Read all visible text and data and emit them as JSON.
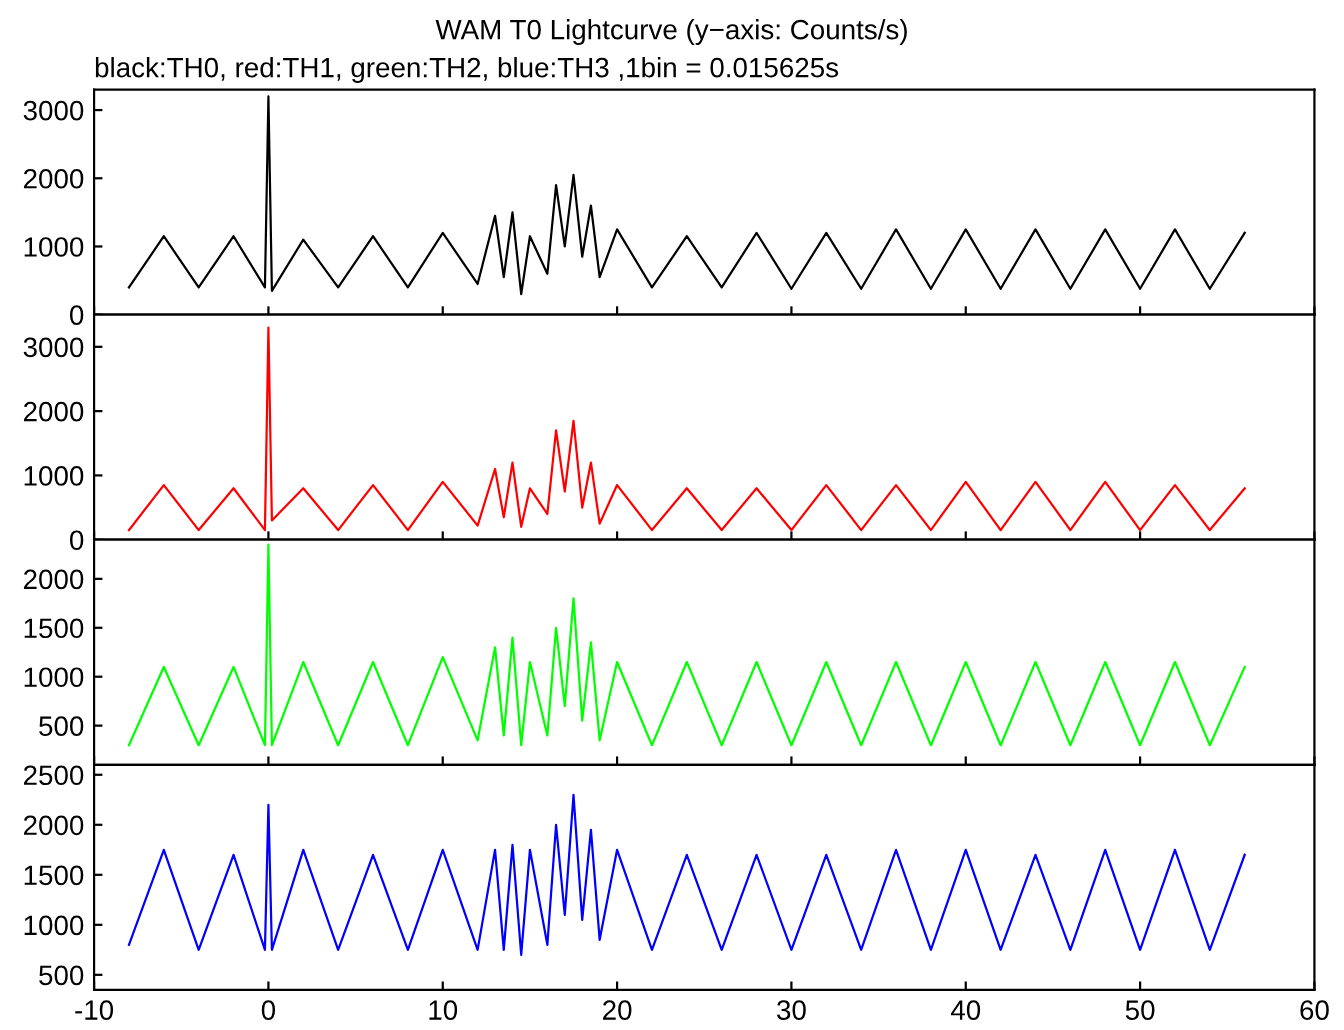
{
  "chart_data": [
    {
      "type": "line",
      "title": "WAM T0 Lightcurve (y−axis: Counts/s)",
      "subtitle": "black:TH0, red:TH1, green:TH2, blue:TH3 ,1bin = 0.015625s",
      "x": [
        -8,
        -6,
        -4,
        -2,
        -0.2,
        0,
        0.2,
        2,
        4,
        6,
        8,
        10,
        12,
        13,
        13.5,
        14,
        14.5,
        15,
        16,
        16.5,
        17,
        17.5,
        18,
        18.5,
        19,
        20,
        22,
        24,
        26,
        28,
        30,
        32,
        34,
        36,
        38,
        40,
        42,
        44,
        46,
        48,
        50,
        52,
        54,
        56
      ],
      "xlim": [
        -10,
        60
      ],
      "xticks": [
        -10,
        0,
        10,
        20,
        30,
        40,
        50,
        60
      ],
      "ylim": [
        0,
        3300
      ],
      "yticks": [
        0,
        1000,
        2000,
        3000
      ],
      "tick_labels": "y",
      "grid": false,
      "series": [
        {
          "color": "#000000",
          "values": [
            400,
            1150,
            400,
            1150,
            400,
            3200,
            350,
            1100,
            400,
            1150,
            400,
            1200,
            450,
            1450,
            550,
            1500,
            300,
            1150,
            600,
            1900,
            1000,
            2050,
            850,
            1600,
            550,
            1250,
            400,
            1150,
            400,
            1200,
            380,
            1200,
            380,
            1250,
            380,
            1250,
            380,
            1250,
            380,
            1250,
            380,
            1250,
            380,
            1200
          ]
        }
      ]
    },
    {
      "type": "line",
      "x": [
        -8,
        -6,
        -4,
        -2,
        -0.2,
        0,
        0.2,
        2,
        4,
        6,
        8,
        10,
        12,
        13,
        13.5,
        14,
        14.5,
        15,
        16,
        16.5,
        17,
        17.5,
        18,
        18.5,
        19,
        20,
        22,
        24,
        26,
        28,
        30,
        32,
        34,
        36,
        38,
        40,
        42,
        44,
        46,
        48,
        50,
        52,
        54,
        56
      ],
      "xlim": [
        -10,
        60
      ],
      "xticks": [
        -10,
        0,
        10,
        20,
        30,
        40,
        50,
        60
      ],
      "ylim": [
        0,
        3500
      ],
      "yticks": [
        0,
        1000,
        2000,
        3000
      ],
      "tick_labels": "y",
      "grid": false,
      "series": [
        {
          "color": "#ff0000",
          "values": [
            150,
            850,
            150,
            800,
            150,
            3300,
            300,
            800,
            150,
            850,
            150,
            900,
            220,
            1100,
            350,
            1200,
            200,
            800,
            400,
            1700,
            750,
            1850,
            500,
            1200,
            250,
            850,
            150,
            800,
            150,
            800,
            150,
            850,
            150,
            850,
            150,
            900,
            150,
            900,
            150,
            900,
            150,
            850,
            150,
            800
          ]
        }
      ]
    },
    {
      "type": "line",
      "x": [
        -8,
        -6,
        -4,
        -2,
        -0.2,
        0,
        0.2,
        2,
        4,
        6,
        8,
        10,
        12,
        13,
        13.5,
        14,
        14.5,
        15,
        16,
        16.5,
        17,
        17.5,
        18,
        18.5,
        19,
        20,
        22,
        24,
        26,
        28,
        30,
        32,
        34,
        36,
        38,
        40,
        42,
        44,
        46,
        48,
        50,
        52,
        54,
        56
      ],
      "xlim": [
        -10,
        60
      ],
      "xticks": [
        -10,
        0,
        10,
        20,
        30,
        40,
        50,
        60
      ],
      "ylim": [
        100,
        2400
      ],
      "yticks": [
        500,
        1000,
        1500,
        2000
      ],
      "tick_labels": "y",
      "grid": false,
      "series": [
        {
          "color": "#00ff00",
          "values": [
            300,
            1100,
            300,
            1100,
            300,
            2350,
            300,
            1150,
            300,
            1150,
            300,
            1200,
            350,
            1300,
            400,
            1400,
            300,
            1150,
            400,
            1500,
            700,
            1800,
            550,
            1350,
            350,
            1150,
            300,
            1150,
            300,
            1150,
            300,
            1150,
            300,
            1150,
            300,
            1150,
            300,
            1150,
            300,
            1150,
            300,
            1150,
            300,
            1100
          ]
        }
      ]
    },
    {
      "type": "line",
      "x": [
        -8,
        -6,
        -4,
        -2,
        -0.2,
        0,
        0.2,
        2,
        4,
        6,
        8,
        10,
        12,
        13,
        13.5,
        14,
        14.5,
        15,
        16,
        16.5,
        17,
        17.5,
        18,
        18.5,
        19,
        20,
        22,
        24,
        26,
        28,
        30,
        32,
        34,
        36,
        38,
        40,
        42,
        44,
        46,
        48,
        50,
        52,
        54,
        56
      ],
      "xlim": [
        -10,
        60
      ],
      "xticks": [
        -10,
        0,
        10,
        20,
        30,
        40,
        50,
        60
      ],
      "ylim": [
        350,
        2600
      ],
      "yticks": [
        500,
        1000,
        1500,
        2000,
        2500
      ],
      "grid": false,
      "series": [
        {
          "color": "#0000ff",
          "values": [
            800,
            1750,
            750,
            1700,
            750,
            2200,
            750,
            1750,
            750,
            1700,
            750,
            1750,
            750,
            1750,
            750,
            1800,
            700,
            1750,
            800,
            2000,
            1100,
            2300,
            1050,
            1950,
            850,
            1750,
            750,
            1700,
            750,
            1700,
            750,
            1700,
            750,
            1750,
            750,
            1750,
            750,
            1700,
            750,
            1750,
            750,
            1750,
            750,
            1700
          ]
        }
      ]
    }
  ]
}
